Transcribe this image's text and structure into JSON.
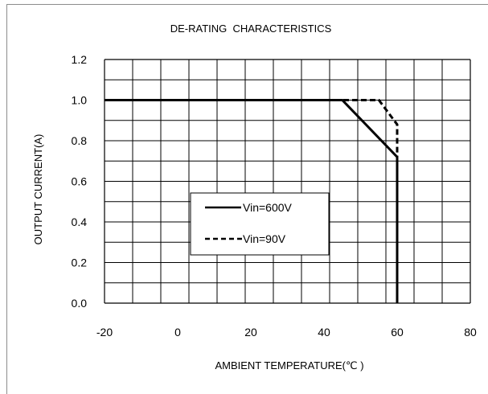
{
  "chart_data": {
    "type": "line",
    "title": "DE-RATING  CHARACTERISTICS",
    "xlabel": "AMBIENT TEMPERATURE(℃ )",
    "ylabel": "OUTPUT CURRENT(A)",
    "xlim": [
      -20,
      80
    ],
    "ylim": [
      0.0,
      1.2
    ],
    "x_ticks": [
      -20,
      0,
      20,
      40,
      60,
      80
    ],
    "x_tick_labels": [
      "-20",
      "0",
      "20",
      "40",
      "60",
      "80"
    ],
    "y_ticks": [
      0.0,
      0.2,
      0.4,
      0.6,
      0.8,
      1.0,
      1.2
    ],
    "y_tick_labels": [
      "0.0",
      "0.2",
      "0.4",
      "0.6",
      "0.8",
      "1.0",
      "1.2"
    ],
    "grid": true,
    "legend_position": "center-left",
    "series": [
      {
        "name": "Vin=600V",
        "style": "solid",
        "color": "#000000",
        "x": [
          -20,
          45,
          60,
          60
        ],
        "y": [
          1.0,
          1.0,
          0.72,
          0.0
        ]
      },
      {
        "name": "Vin=90V",
        "style": "dashed",
        "color": "#000000",
        "x": [
          -20,
          45,
          55,
          60,
          60
        ],
        "y": [
          1.0,
          1.0,
          1.0,
          0.88,
          0.0
        ]
      }
    ]
  }
}
